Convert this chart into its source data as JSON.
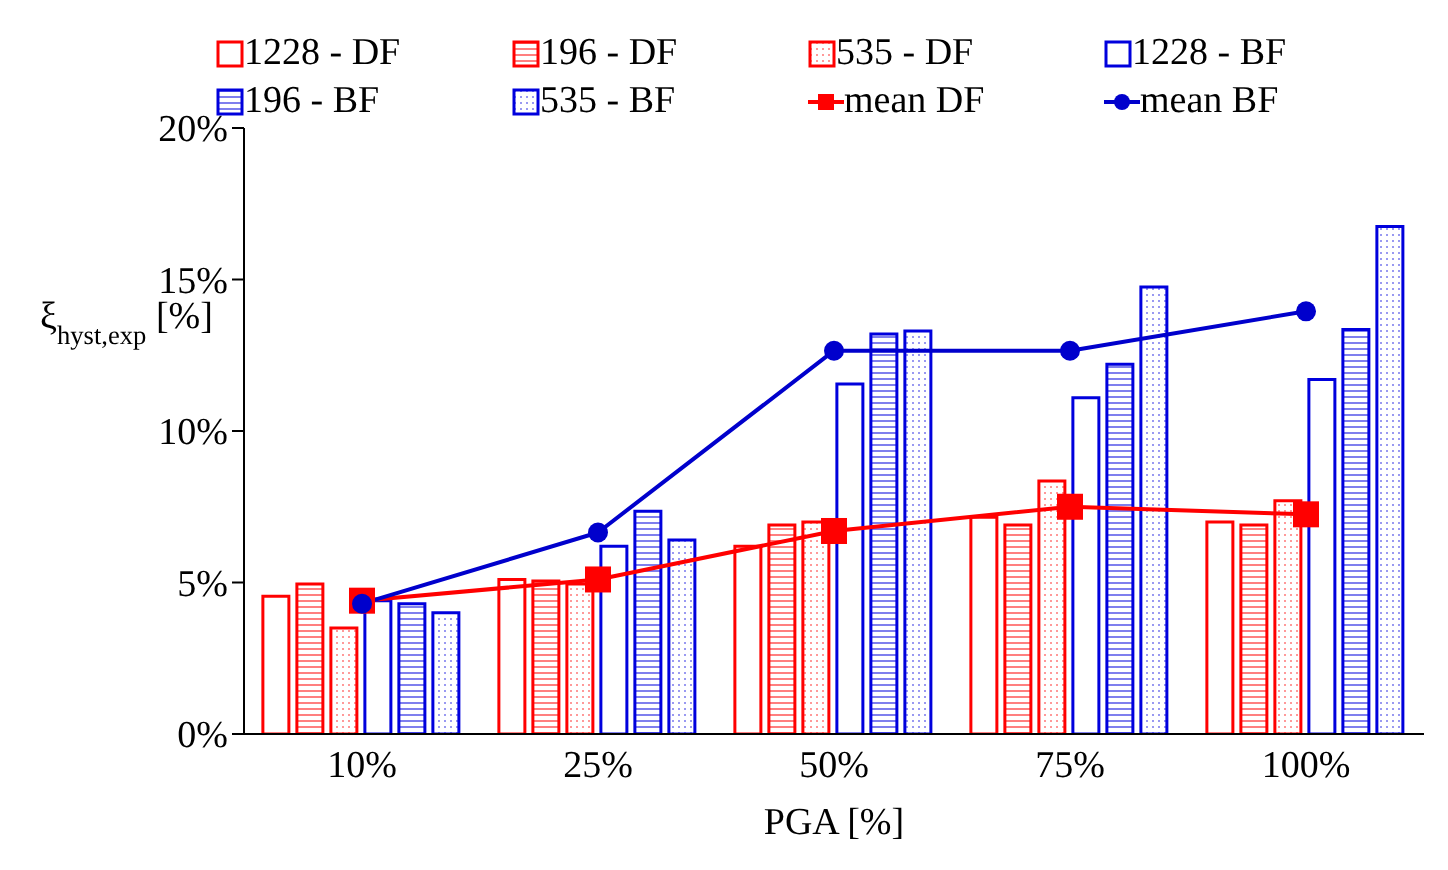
{
  "chart_data": {
    "type": "bar",
    "xlabel": "PGA [%]",
    "ylabel": "ξ$_{hyst,exp}$ [%]",
    "categories": [
      "10%",
      "25%",
      "50%",
      "75%",
      "100%"
    ],
    "ylim": [
      0,
      20
    ],
    "yticks": [
      {
        "value": 0,
        "label": "0%"
      },
      {
        "value": 5,
        "label": "5%"
      },
      {
        "value": 10,
        "label": "10%"
      },
      {
        "value": 15,
        "label": "15%"
      },
      {
        "value": 20,
        "label": "20%"
      }
    ],
    "grid": false,
    "legend": "top",
    "series": [
      {
        "name": "1228 - DF",
        "color": "#ff0000",
        "values": [
          4.55,
          5.1,
          6.2,
          7.15,
          7.0
        ]
      },
      {
        "name": "196 - DF",
        "color": "#ff0000",
        "values": [
          4.95,
          5.05,
          6.9,
          6.9,
          6.9
        ]
      },
      {
        "name": "535 - DF",
        "color": "#ff0000",
        "values": [
          3.5,
          4.95,
          7.0,
          8.35,
          7.7
        ]
      },
      {
        "name": "1228 - BF",
        "color": "#0000dd",
        "values": [
          4.4,
          6.2,
          11.55,
          11.1,
          11.7
        ]
      },
      {
        "name": "196 - BF",
        "color": "#0000dd",
        "values": [
          4.3,
          7.35,
          13.2,
          12.2,
          13.35
        ]
      },
      {
        "name": "535 - BF",
        "color": "#0000dd",
        "values": [
          4.0,
          6.4,
          13.3,
          14.75,
          16.75
        ]
      },
      {
        "name": "mean DF",
        "type": "line",
        "marker": "square",
        "color": "#ff0000",
        "values": [
          4.4,
          5.1,
          6.7,
          7.5,
          7.25
        ]
      },
      {
        "name": "mean BF",
        "type": "line",
        "marker": "circle",
        "color": "#0000cc",
        "values": [
          4.3,
          6.65,
          12.65,
          12.65,
          13.95
        ]
      }
    ]
  }
}
